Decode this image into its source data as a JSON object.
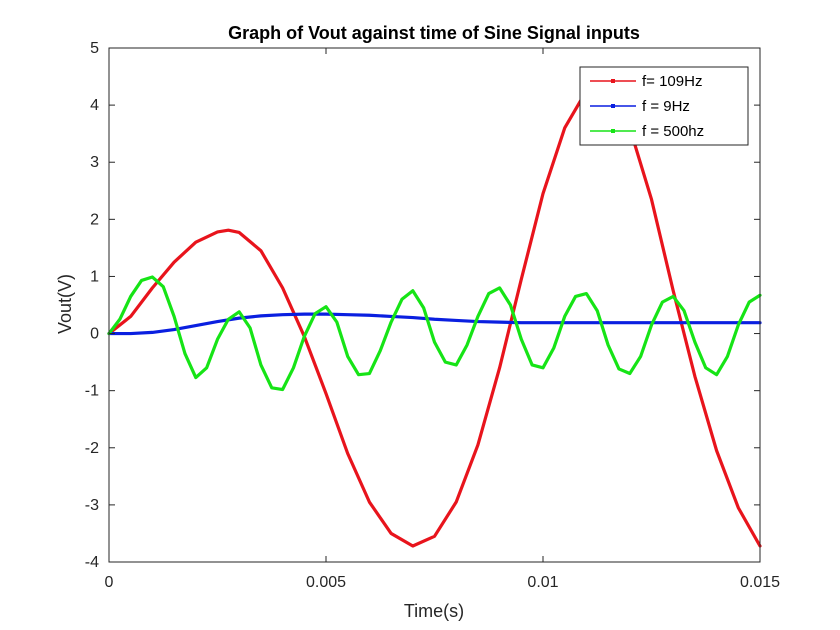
{
  "chart_data": {
    "type": "line",
    "title": "Graph of Vout against time of Sine Signal inputs",
    "xlabel": "Time(s)",
    "ylabel": "Vout(V)",
    "xlim": [
      0,
      0.015
    ],
    "ylim": [
      -4,
      5
    ],
    "x_ticks": [
      {
        "value": 0,
        "label": "0"
      },
      {
        "value": 0.005,
        "label": "0.005"
      },
      {
        "value": 0.01,
        "label": "0.01"
      },
      {
        "value": 0.015,
        "label": "0.015"
      }
    ],
    "y_ticks": [
      {
        "value": -4,
        "label": "-4"
      },
      {
        "value": -3,
        "label": "-3"
      },
      {
        "value": -2,
        "label": "-2"
      },
      {
        "value": -1,
        "label": "-1"
      },
      {
        "value": 0,
        "label": "0"
      },
      {
        "value": 1,
        "label": "1"
      },
      {
        "value": 2,
        "label": "2"
      },
      {
        "value": 3,
        "label": "3"
      },
      {
        "value": 4,
        "label": "4"
      },
      {
        "value": 5,
        "label": "5"
      }
    ],
    "grid": false,
    "legend_position": "top-right",
    "series": [
      {
        "name": "f= 109Hz",
        "color": "#e8141c",
        "points": [
          [
            0,
            0
          ],
          [
            0.0005,
            0.3
          ],
          [
            0.001,
            0.8
          ],
          [
            0.0015,
            1.25
          ],
          [
            0.002,
            1.6
          ],
          [
            0.0025,
            1.78
          ],
          [
            0.00275,
            1.81
          ],
          [
            0.003,
            1.77
          ],
          [
            0.0035,
            1.45
          ],
          [
            0.004,
            0.8
          ],
          [
            0.0045,
            -0.05
          ],
          [
            0.005,
            -1.05
          ],
          [
            0.0055,
            -2.1
          ],
          [
            0.006,
            -2.95
          ],
          [
            0.0065,
            -3.5
          ],
          [
            0.007,
            -3.72
          ],
          [
            0.0075,
            -3.55
          ],
          [
            0.008,
            -2.95
          ],
          [
            0.0085,
            -1.95
          ],
          [
            0.009,
            -0.6
          ],
          [
            0.0095,
            0.95
          ],
          [
            0.01,
            2.45
          ],
          [
            0.0105,
            3.6
          ],
          [
            0.011,
            4.25
          ],
          [
            0.0115,
            4.3
          ],
          [
            0.012,
            3.6
          ],
          [
            0.0125,
            2.35
          ],
          [
            0.013,
            0.75
          ],
          [
            0.0135,
            -0.75
          ],
          [
            0.014,
            -2.05
          ],
          [
            0.0145,
            -3.05
          ],
          [
            0.015,
            -3.72
          ]
        ]
      },
      {
        "name": "f = 9Hz",
        "color": "#0a1fe0",
        "points": [
          [
            0,
            0
          ],
          [
            0.0005,
            0.0
          ],
          [
            0.001,
            0.02
          ],
          [
            0.0015,
            0.07
          ],
          [
            0.002,
            0.14
          ],
          [
            0.0025,
            0.21
          ],
          [
            0.003,
            0.27
          ],
          [
            0.0035,
            0.31
          ],
          [
            0.004,
            0.33
          ],
          [
            0.0045,
            0.34
          ],
          [
            0.005,
            0.34
          ],
          [
            0.0055,
            0.33
          ],
          [
            0.006,
            0.32
          ],
          [
            0.0065,
            0.3
          ],
          [
            0.007,
            0.28
          ],
          [
            0.0075,
            0.25
          ],
          [
            0.008,
            0.23
          ],
          [
            0.0085,
            0.21
          ],
          [
            0.009,
            0.2
          ],
          [
            0.0095,
            0.19
          ],
          [
            0.01,
            0.19
          ],
          [
            0.011,
            0.19
          ],
          [
            0.012,
            0.19
          ],
          [
            0.013,
            0.19
          ],
          [
            0.014,
            0.19
          ],
          [
            0.015,
            0.19
          ]
        ]
      },
      {
        "name": "f = 500hz",
        "color": "#16e416",
        "points": [
          [
            0,
            0
          ],
          [
            0.00025,
            0.25
          ],
          [
            0.0005,
            0.65
          ],
          [
            0.00075,
            0.93
          ],
          [
            0.001,
            0.99
          ],
          [
            0.00125,
            0.82
          ],
          [
            0.0015,
            0.3
          ],
          [
            0.00175,
            -0.35
          ],
          [
            0.002,
            -0.77
          ],
          [
            0.00225,
            -0.6
          ],
          [
            0.0025,
            -0.1
          ],
          [
            0.00275,
            0.25
          ],
          [
            0.003,
            0.38
          ],
          [
            0.00325,
            0.1
          ],
          [
            0.0035,
            -0.55
          ],
          [
            0.00375,
            -0.95
          ],
          [
            0.004,
            -0.98
          ],
          [
            0.00425,
            -0.6
          ],
          [
            0.0045,
            -0.05
          ],
          [
            0.00475,
            0.35
          ],
          [
            0.005,
            0.47
          ],
          [
            0.00525,
            0.2
          ],
          [
            0.0055,
            -0.4
          ],
          [
            0.00575,
            -0.72
          ],
          [
            0.006,
            -0.7
          ],
          [
            0.00625,
            -0.3
          ],
          [
            0.0065,
            0.2
          ],
          [
            0.00675,
            0.6
          ],
          [
            0.007,
            0.75
          ],
          [
            0.00725,
            0.45
          ],
          [
            0.0075,
            -0.15
          ],
          [
            0.00775,
            -0.5
          ],
          [
            0.008,
            -0.55
          ],
          [
            0.00825,
            -0.2
          ],
          [
            0.0085,
            0.3
          ],
          [
            0.00875,
            0.7
          ],
          [
            0.009,
            0.8
          ],
          [
            0.00925,
            0.5
          ],
          [
            0.0095,
            -0.1
          ],
          [
            0.00975,
            -0.55
          ],
          [
            0.01,
            -0.6
          ],
          [
            0.01025,
            -0.25
          ],
          [
            0.0105,
            0.3
          ],
          [
            0.01075,
            0.65
          ],
          [
            0.011,
            0.7
          ],
          [
            0.01125,
            0.4
          ],
          [
            0.0115,
            -0.2
          ],
          [
            0.01175,
            -0.62
          ],
          [
            0.012,
            -0.7
          ],
          [
            0.01225,
            -0.4
          ],
          [
            0.0125,
            0.15
          ],
          [
            0.01275,
            0.55
          ],
          [
            0.013,
            0.65
          ],
          [
            0.01325,
            0.4
          ],
          [
            0.0135,
            -0.15
          ],
          [
            0.01375,
            -0.6
          ],
          [
            0.014,
            -0.72
          ],
          [
            0.01425,
            -0.4
          ],
          [
            0.0145,
            0.15
          ],
          [
            0.01475,
            0.55
          ],
          [
            0.015,
            0.67
          ]
        ]
      }
    ]
  }
}
